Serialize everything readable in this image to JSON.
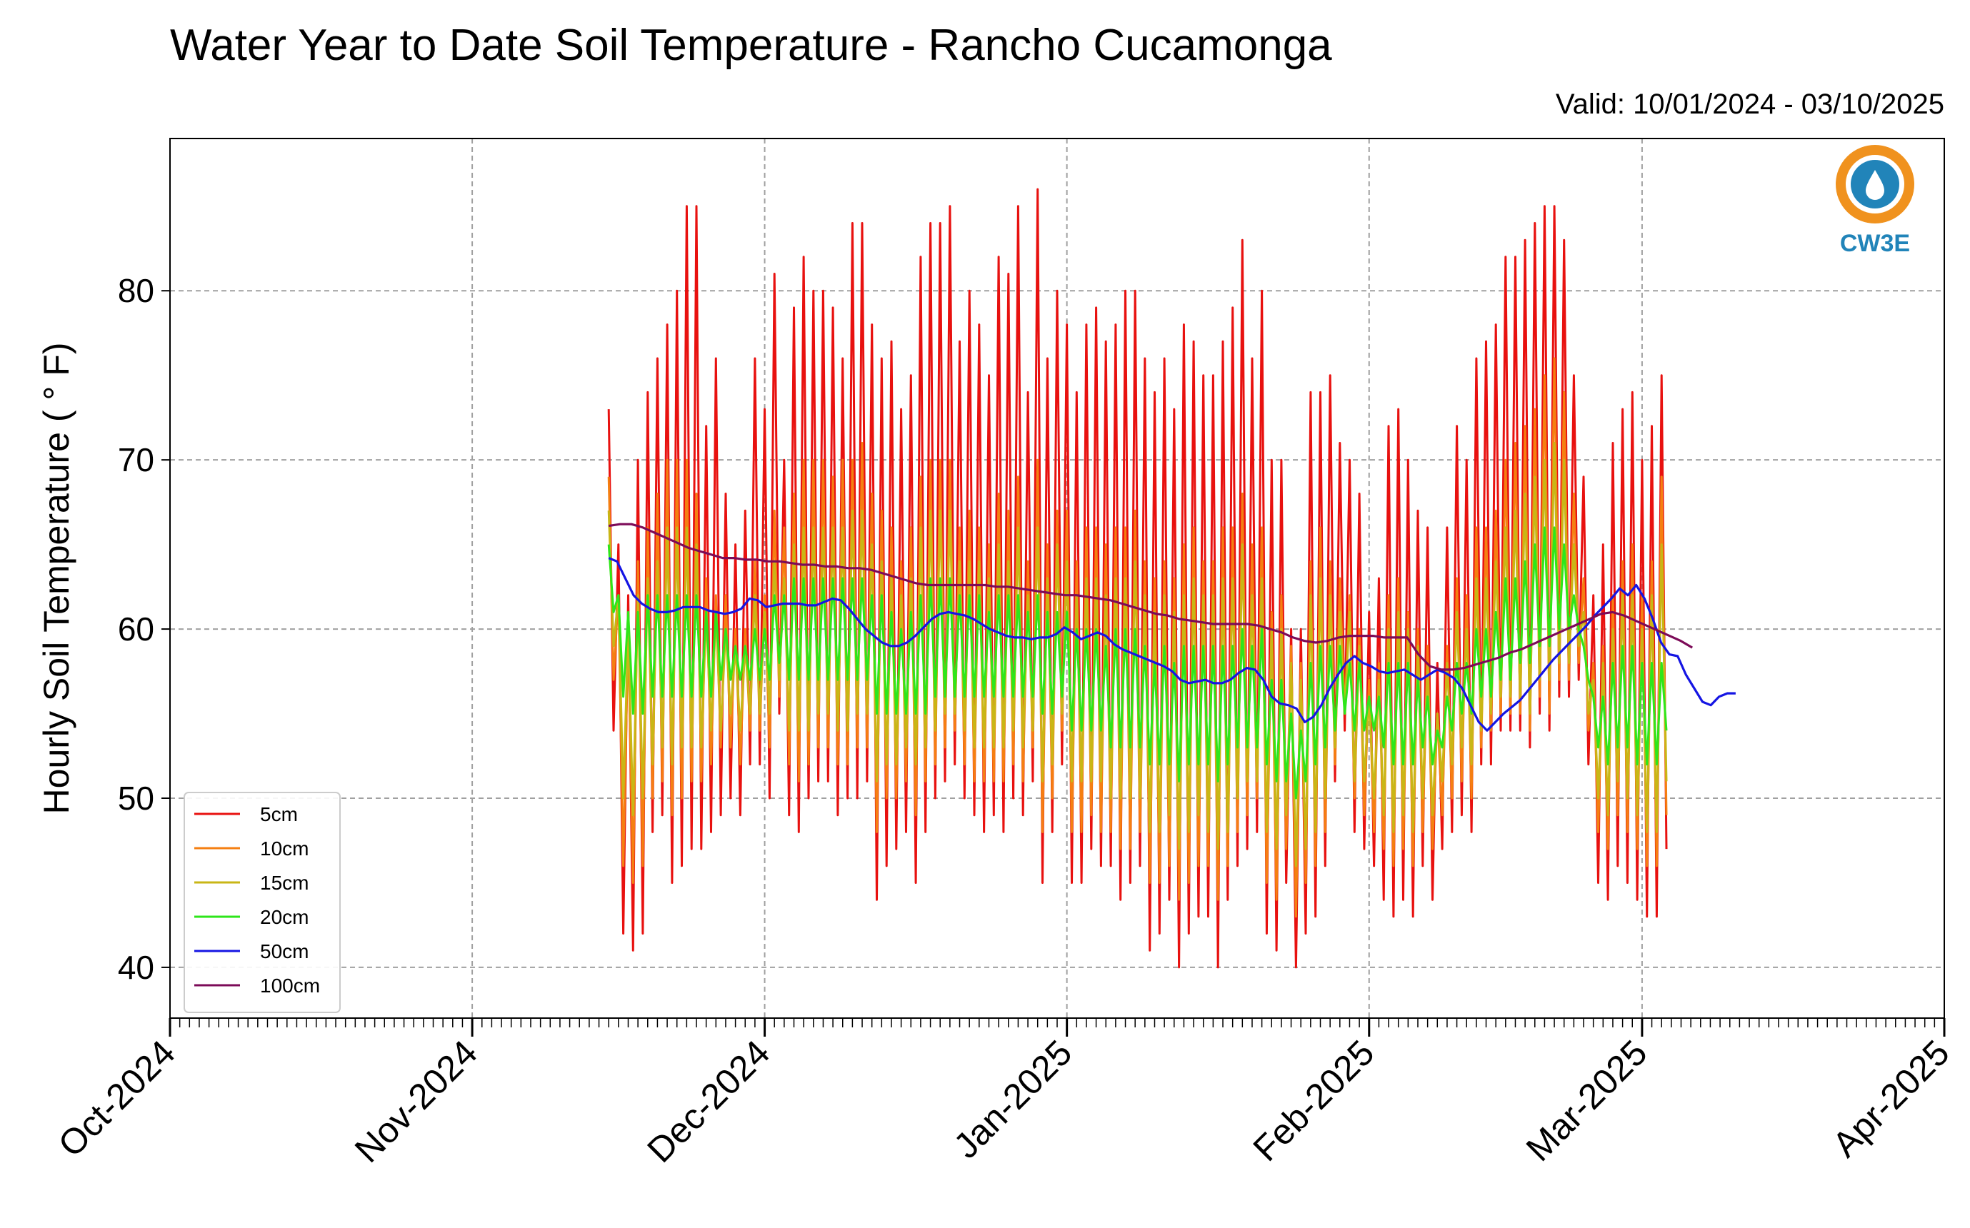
{
  "chart_data": {
    "type": "line",
    "title": "Water Year to Date Soil Temperature - Rancho Cucamonga",
    "subtitle": "Valid: 10/01/2024 - 03/10/2025",
    "xlabel": "",
    "ylabel": "Hourly Soil Temperature ( ° F)",
    "xlim": [
      "2024-10-01",
      "2025-04-01"
    ],
    "ylim": [
      37,
      89
    ],
    "x_ticks": [
      "Oct-2024",
      "Nov-2024",
      "Dec-2024",
      "Jan-2025",
      "Feb-2025",
      "Mar-2025",
      "Apr-2025"
    ],
    "y_ticks": [
      40,
      50,
      60,
      70,
      80
    ],
    "grid": true,
    "legend_position": "lower-left",
    "data_start": "2024-11-15",
    "series": [
      {
        "name": "5cm",
        "color": "#e8110f",
        "max": [
          73,
          65,
          62,
          70,
          74,
          76,
          78,
          80,
          85,
          85,
          72,
          76,
          68,
          65,
          67,
          76,
          73,
          81,
          70,
          79,
          82,
          80,
          80,
          79,
          76,
          84,
          84,
          78,
          76,
          77,
          73,
          75,
          82,
          84,
          84,
          85,
          77,
          80,
          78,
          75,
          82,
          81,
          85,
          74,
          86,
          76,
          80,
          78,
          74,
          78,
          79,
          77,
          78,
          80,
          80,
          76,
          74,
          76,
          73,
          78,
          77,
          75,
          75,
          77,
          79,
          83,
          76,
          80,
          70,
          70,
          60,
          60,
          74,
          74,
          75,
          71,
          70,
          68,
          61,
          63,
          72,
          73,
          70,
          67,
          66,
          58,
          66,
          72,
          70,
          76,
          77,
          78,
          82,
          82,
          83,
          84,
          85,
          85,
          83,
          75,
          69,
          62,
          65,
          71,
          73,
          74,
          70,
          72,
          75
        ],
        "min": [
          54,
          42,
          41,
          42,
          48,
          49,
          45,
          46,
          47,
          47,
          48,
          49,
          50,
          49,
          52,
          52,
          50,
          55,
          49,
          48,
          50,
          51,
          51,
          49,
          50,
          50,
          51,
          44,
          46,
          47,
          48,
          45,
          48,
          50,
          51,
          52,
          50,
          49,
          48,
          49,
          48,
          50,
          49,
          51,
          45,
          48,
          52,
          45,
          45,
          47,
          46,
          46,
          44,
          45,
          46,
          41,
          42,
          44,
          40,
          42,
          43,
          43,
          40,
          44,
          46,
          47,
          48,
          42,
          41,
          45,
          40,
          42,
          43,
          46,
          51,
          54,
          48,
          47,
          46,
          44,
          43,
          44,
          43,
          46,
          44,
          47,
          48,
          49,
          48,
          52,
          52,
          54,
          54,
          54,
          53,
          55,
          54,
          56,
          56,
          57,
          52,
          45,
          44,
          46,
          45,
          44,
          43,
          43,
          47
        ]
      },
      {
        "name": "10cm",
        "color": "#f57f12",
        "max": [
          69,
          62,
          60,
          64,
          66,
          68,
          70,
          70,
          70,
          68,
          63,
          62,
          62,
          60,
          60,
          64,
          62,
          67,
          66,
          68,
          70,
          70,
          70,
          69,
          70,
          70,
          71,
          68,
          67,
          66,
          64,
          66,
          69,
          70,
          70,
          70,
          66,
          67,
          66,
          65,
          68,
          67,
          69,
          64,
          70,
          65,
          67,
          67,
          64,
          66,
          66,
          65,
          66,
          66,
          67,
          64,
          63,
          64,
          63,
          65,
          66,
          64,
          64,
          66,
          66,
          68,
          65,
          66,
          61,
          62,
          59,
          58,
          64,
          66,
          64,
          63,
          62,
          60,
          57,
          58,
          62,
          63,
          61,
          60,
          59,
          55,
          59,
          63,
          62,
          66,
          66,
          67,
          70,
          71,
          72,
          73,
          75,
          76,
          74,
          68,
          63,
          58,
          59,
          62,
          64,
          65,
          62,
          64,
          69
        ],
        "min": [
          57,
          46,
          45,
          46,
          50,
          51,
          49,
          50,
          51,
          51,
          52,
          53,
          53,
          52,
          54,
          54,
          53,
          56,
          52,
          51,
          52,
          53,
          53,
          52,
          52,
          53,
          53,
          48,
          50,
          50,
          51,
          49,
          51,
          52,
          53,
          54,
          52,
          51,
          51,
          51,
          51,
          52,
          51,
          53,
          48,
          50,
          54,
          48,
          48,
          49,
          48,
          48,
          47,
          47,
          48,
          45,
          45,
          46,
          44,
          45,
          46,
          46,
          44,
          46,
          48,
          49,
          50,
          45,
          44,
          47,
          43,
          45,
          46,
          48,
          52,
          55,
          50,
          49,
          48,
          47,
          46,
          47,
          46,
          48,
          47,
          49,
          50,
          51,
          50,
          53,
          54,
          55,
          55,
          55,
          54,
          56,
          55,
          57,
          57,
          58,
          54,
          48,
          47,
          49,
          48,
          47,
          46,
          46,
          49
        ]
      },
      {
        "name": "15cm",
        "color": "#c9b616",
        "max": [
          67,
          62,
          60,
          62,
          63,
          64,
          66,
          66,
          66,
          65,
          61,
          61,
          60,
          59,
          59,
          62,
          61,
          64,
          63,
          65,
          66,
          66,
          66,
          66,
          66,
          67,
          67,
          65,
          64,
          63,
          62,
          63,
          66,
          67,
          67,
          67,
          64,
          64,
          64,
          63,
          65,
          64,
          66,
          62,
          66,
          63,
          65,
          64,
          62,
          63,
          63,
          62,
          63,
          63,
          64,
          62,
          61,
          62,
          61,
          62,
          63,
          62,
          62,
          63,
          63,
          65,
          62,
          63,
          60,
          60,
          58,
          57,
          62,
          63,
          62,
          61,
          61,
          59,
          56,
          57,
          60,
          61,
          60,
          59,
          58,
          55,
          58,
          61,
          60,
          63,
          63,
          64,
          66,
          67,
          68,
          69,
          70,
          71,
          70,
          65,
          61,
          57,
          58,
          60,
          62,
          62,
          60,
          62,
          65
        ],
        "min": [
          59,
          50,
          49,
          50,
          52,
          53,
          52,
          53,
          53,
          53,
          54,
          54,
          55,
          54,
          55,
          55,
          55,
          57,
          54,
          54,
          54,
          55,
          55,
          54,
          54,
          55,
          55,
          51,
          52,
          52,
          53,
          52,
          53,
          54,
          55,
          55,
          54,
          53,
          53,
          53,
          53,
          54,
          53,
          54,
          51,
          52,
          55,
          51,
          51,
          51,
          51,
          50,
          50,
          50,
          50,
          48,
          48,
          49,
          47,
          48,
          49,
          48,
          47,
          48,
          50,
          51,
          51,
          48,
          47,
          49,
          46,
          47,
          48,
          50,
          53,
          55,
          51,
          51,
          50,
          49,
          48,
          49,
          48,
          50,
          49,
          51,
          52,
          53,
          52,
          54,
          55,
          56,
          56,
          56,
          55,
          57,
          57,
          58,
          58,
          59,
          55,
          50,
          49,
          51,
          50,
          49,
          48,
          48,
          51
        ]
      },
      {
        "name": "20cm",
        "color": "#2ee61a",
        "max": [
          65,
          62,
          61,
          61,
          62,
          62,
          62,
          62,
          62,
          62,
          61,
          61,
          60,
          59,
          59,
          60,
          60,
          62,
          62,
          63,
          63,
          63,
          63,
          63,
          63,
          63,
          63,
          62,
          62,
          61,
          60,
          61,
          62,
          63,
          63,
          63,
          62,
          62,
          62,
          61,
          62,
          62,
          62,
          61,
          62,
          61,
          61,
          61,
          60,
          60,
          60,
          59,
          60,
          60,
          60,
          59,
          58,
          59,
          58,
          59,
          59,
          59,
          59,
          59,
          59,
          60,
          59,
          60,
          57,
          57,
          55,
          54,
          58,
          59,
          59,
          59,
          58,
          58,
          56,
          56,
          58,
          58,
          58,
          57,
          56,
          54,
          56,
          58,
          58,
          60,
          60,
          61,
          63,
          63,
          64,
          65,
          66,
          66,
          65,
          62,
          59,
          56,
          56,
          58,
          59,
          59,
          58,
          58,
          58
        ],
        "min": [
          61,
          56,
          55,
          55,
          56,
          56,
          56,
          56,
          56,
          56,
          56,
          57,
          57,
          57,
          57,
          57,
          57,
          58,
          57,
          57,
          57,
          57,
          57,
          57,
          57,
          57,
          57,
          55,
          55,
          55,
          55,
          55,
          55,
          56,
          56,
          56,
          56,
          56,
          56,
          56,
          56,
          56,
          56,
          56,
          55,
          55,
          56,
          54,
          54,
          54,
          54,
          53,
          53,
          53,
          53,
          52,
          52,
          52,
          51,
          52,
          52,
          52,
          51,
          52,
          53,
          53,
          53,
          52,
          51,
          51,
          50,
          51,
          52,
          53,
          54,
          55,
          54,
          54,
          54,
          53,
          52,
          52,
          52,
          53,
          52,
          53,
          54,
          55,
          55,
          56,
          56,
          57,
          57,
          58,
          58,
          59,
          59,
          60,
          60,
          60,
          57,
          53,
          52,
          53,
          53,
          52,
          52,
          52,
          54
        ]
      },
      {
        "name": "50cm",
        "color": "#1515e3",
        "values": [
          64.2,
          64,
          63,
          62,
          61.5,
          61.2,
          61,
          61,
          61.1,
          61.3,
          61.3,
          61.3,
          61.1,
          61.0,
          60.9,
          61.0,
          61.2,
          61.8,
          61.7,
          61.3,
          61.4,
          61.5,
          61.5,
          61.5,
          61.4,
          61.4,
          61.6,
          61.8,
          61.7,
          61.2,
          60.6,
          60.0,
          59.6,
          59.2,
          59.0,
          59.0,
          59.2,
          59.6,
          60.1,
          60.6,
          60.9,
          61.0,
          60.9,
          60.8,
          60.6,
          60.3,
          60.0,
          59.8,
          59.6,
          59.5,
          59.5,
          59.4,
          59.5,
          59.5,
          59.7,
          60.1,
          59.8,
          59.4,
          59.6,
          59.8,
          59.6,
          59.1,
          58.8,
          58.6,
          58.4,
          58.2,
          58.0,
          57.8,
          57.5,
          57.0,
          56.8,
          56.9,
          57.0,
          56.8,
          56.8,
          57.0,
          57.4,
          57.7,
          57.6,
          57.0,
          56.0,
          55.6,
          55.5,
          55.3,
          54.5,
          54.8,
          55.5,
          56.5,
          57.3,
          58.0,
          58.4,
          58.0,
          57.8,
          57.5,
          57.4,
          57.5,
          57.6,
          57.3,
          57.0,
          57.3,
          57.6,
          57.4,
          57.1,
          56.5,
          55.5,
          54.5,
          54.0,
          54.5,
          55.0,
          55.4,
          55.8,
          56.4,
          57.0,
          57.6,
          58.2,
          58.7,
          59.2,
          59.7,
          60.2,
          60.8,
          61.3,
          61.8,
          62.4,
          62.0,
          62.6,
          61.8,
          60.6,
          59.2,
          58.5,
          58.4,
          57.3,
          56.5,
          55.7,
          55.5,
          56.0,
          56.2,
          56.2
        ],
        "x_step_days": 0.85
      },
      {
        "name": "100cm",
        "color": "#7c0b58",
        "values": [
          66.1,
          66.2,
          66.2,
          66.0,
          65.7,
          65.4,
          65.1,
          64.8,
          64.6,
          64.4,
          64.2,
          64.2,
          64.1,
          64.1,
          64.0,
          64.0,
          63.9,
          63.8,
          63.8,
          63.7,
          63.7,
          63.6,
          63.6,
          63.5,
          63.3,
          63.1,
          62.9,
          62.7,
          62.6,
          62.6,
          62.6,
          62.6,
          62.6,
          62.6,
          62.5,
          62.5,
          62.4,
          62.3,
          62.2,
          62.1,
          62.0,
          62.0,
          61.9,
          61.8,
          61.7,
          61.5,
          61.3,
          61.1,
          60.9,
          60.8,
          60.6,
          60.5,
          60.4,
          60.3,
          60.3,
          60.3,
          60.3,
          60.2,
          60.0,
          59.8,
          59.5,
          59.3,
          59.2,
          59.3,
          59.5,
          59.6,
          59.6,
          59.6,
          59.5,
          59.5,
          59.5,
          58.5,
          57.8,
          57.6,
          57.6,
          57.7,
          57.9,
          58.1,
          58.3,
          58.6,
          58.8,
          59.1,
          59.4,
          59.7,
          60.0,
          60.3,
          60.6,
          60.9,
          61.0,
          60.8,
          60.5,
          60.2,
          59.9,
          59.6,
          59.3,
          58.9
        ],
        "x_step_days": 1.17
      }
    ]
  },
  "logo": {
    "text": "CW3E",
    "color": "#2184b9",
    "accent": "#f0921e"
  }
}
